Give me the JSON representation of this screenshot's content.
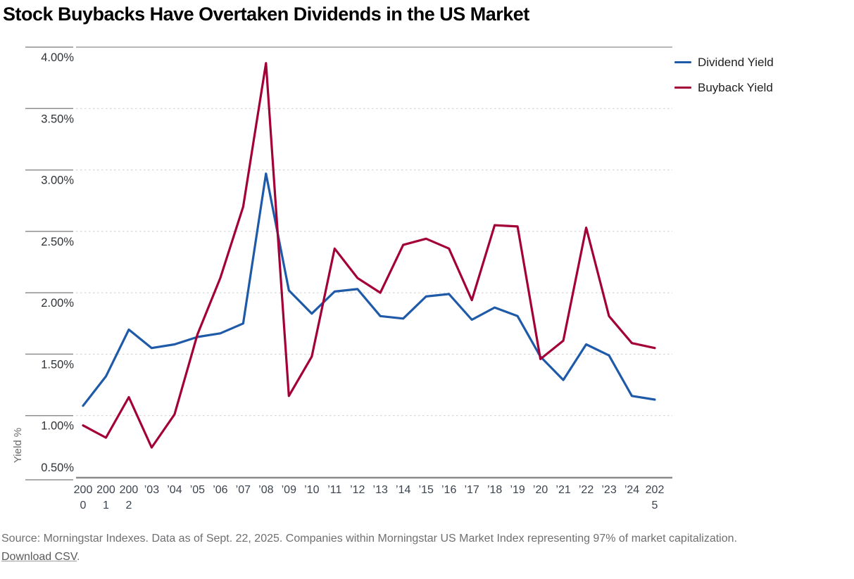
{
  "title": "Stock Buybacks Have Overtaken Dividends in the US Market",
  "legend": [
    {
      "label": "Dividend Yield",
      "color": "#1F5AA8"
    },
    {
      "label": "Buyback Yield",
      "color": "#A30038"
    }
  ],
  "source_line": "Source: Morningstar Indexes. Data as of Sept. 22, 2025. Companies within Morningstar US Market Index representing 97% of market capitalization.",
  "download_link": "Download CSV",
  "download_suffix": ".",
  "chart_data": {
    "type": "line",
    "title": "Stock Buybacks Have Overtaken Dividends in the US Market",
    "xlabel": "",
    "ylabel": "Yield %",
    "ylim": [
      0.5,
      4.0
    ],
    "y_tick_step": 0.5,
    "y_tick_labels": [
      "4.00%",
      "3.50%",
      "3.00%",
      "2.50%",
      "2.00%",
      "1.50%",
      "1.00%",
      "0.50%"
    ],
    "grid": "dotted-horizontal",
    "legend_position": "top-right",
    "categories": [
      2000,
      2001,
      2002,
      2003,
      2004,
      2005,
      2006,
      2007,
      2008,
      2009,
      2010,
      2011,
      2012,
      2013,
      2014,
      2015,
      2016,
      2017,
      2018,
      2019,
      2020,
      2021,
      2022,
      2023,
      2024,
      2025
    ],
    "x_tick_labels": [
      [
        "200",
        "0"
      ],
      [
        "200",
        "1"
      ],
      [
        "200",
        "2"
      ],
      [
        "’03"
      ],
      [
        "’04"
      ],
      [
        "’05"
      ],
      [
        "’06"
      ],
      [
        "’07"
      ],
      [
        "’08"
      ],
      [
        "’09"
      ],
      [
        "’10"
      ],
      [
        "’11"
      ],
      [
        "’12"
      ],
      [
        "’13"
      ],
      [
        "’14"
      ],
      [
        "’15"
      ],
      [
        "’16"
      ],
      [
        "’17"
      ],
      [
        "’18"
      ],
      [
        "’19"
      ],
      [
        "’20"
      ],
      [
        "’21"
      ],
      [
        "’22"
      ],
      [
        "’23"
      ],
      [
        "’24"
      ],
      [
        "202",
        "5"
      ]
    ],
    "series": [
      {
        "name": "Dividend Yield",
        "color": "#1F5AA8",
        "values": [
          1.08,
          1.32,
          1.7,
          1.55,
          1.58,
          1.64,
          1.67,
          1.75,
          2.97,
          2.02,
          1.83,
          2.01,
          2.03,
          1.81,
          1.79,
          1.97,
          1.99,
          1.78,
          1.88,
          1.81,
          1.48,
          1.29,
          1.58,
          1.49,
          1.16,
          1.13
        ]
      },
      {
        "name": "Buyback Yield",
        "color": "#A30038",
        "values": [
          0.92,
          0.82,
          1.15,
          0.74,
          1.01,
          1.66,
          2.12,
          2.7,
          3.87,
          1.16,
          1.48,
          2.36,
          2.12,
          2.0,
          2.39,
          2.44,
          2.36,
          1.94,
          2.55,
          2.54,
          1.46,
          1.61,
          2.53,
          1.81,
          1.59,
          1.55
        ]
      }
    ]
  }
}
